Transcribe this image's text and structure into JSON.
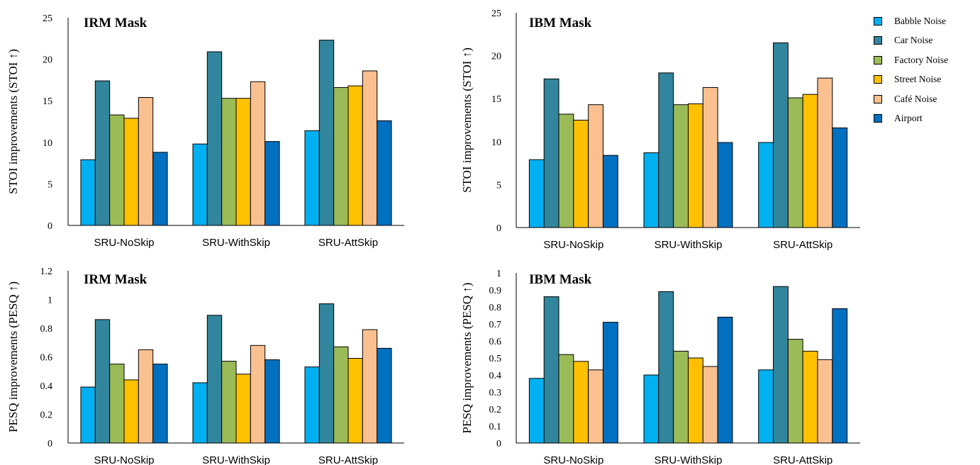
{
  "legend": {
    "items": [
      {
        "label": "Babble Noise",
        "color": "#00B0F0"
      },
      {
        "label": "Car Noise",
        "color": "#31859C"
      },
      {
        "label": "Factory Noise",
        "color": "#9BBB59"
      },
      {
        "label": "Street Noise",
        "color": "#FFC000"
      },
      {
        "label": "Café Noise",
        "color": "#FAC090"
      },
      {
        "label": "Airport",
        "color": "#0070C0"
      }
    ]
  },
  "chart_data": [
    {
      "type": "bar",
      "title": "IRM Mask",
      "ylabel": "STOI improvements (STOI ↑)",
      "categories": [
        "SRU-NoSkip",
        "SRU-WithSkip",
        "SRU-AttSkip"
      ],
      "ylim": [
        0,
        25
      ],
      "yticks": [
        0,
        5,
        10,
        15,
        20,
        25
      ],
      "series": [
        {
          "name": "Babble Noise",
          "values": [
            7.9,
            9.8,
            11.4
          ]
        },
        {
          "name": "Car Noise",
          "values": [
            17.4,
            20.9,
            22.3
          ]
        },
        {
          "name": "Factory Noise",
          "values": [
            13.3,
            15.3,
            16.6
          ]
        },
        {
          "name": "Street Noise",
          "values": [
            12.9,
            15.3,
            16.8
          ]
        },
        {
          "name": "Café Noise",
          "values": [
            15.4,
            17.3,
            18.6
          ]
        },
        {
          "name": "Airport",
          "values": [
            8.8,
            10.1,
            12.6
          ]
        }
      ]
    },
    {
      "type": "bar",
      "title": "IBM Mask",
      "ylabel": "STOI improvements (STOI ↑)",
      "categories": [
        "SRU-NoSkip",
        "SRU-WithSkip",
        "SRU-AttSkip"
      ],
      "ylim": [
        0,
        25
      ],
      "yticks": [
        0,
        5,
        10,
        15,
        20,
        25
      ],
      "series": [
        {
          "name": "Babble Noise",
          "values": [
            7.9,
            8.7,
            9.9
          ]
        },
        {
          "name": "Car Noise",
          "values": [
            17.3,
            18.0,
            21.5
          ]
        },
        {
          "name": "Factory Noise",
          "values": [
            13.2,
            14.3,
            15.1
          ]
        },
        {
          "name": "Street Noise",
          "values": [
            12.5,
            14.4,
            15.5
          ]
        },
        {
          "name": "Café Noise",
          "values": [
            14.3,
            16.3,
            17.4
          ]
        },
        {
          "name": "Airport",
          "values": [
            8.4,
            9.9,
            11.6
          ]
        }
      ]
    },
    {
      "type": "bar",
      "title": "IRM Mask",
      "ylabel": "PESQ improvements (PESQ ↑)",
      "categories": [
        "SRU-NoSkip",
        "SRU-WithSkip",
        "SRU-AttSkip"
      ],
      "ylim": [
        0,
        1.2
      ],
      "yticks": [
        "0",
        "0.2",
        "0.4",
        "0.6",
        "0.8",
        "1",
        "1.2"
      ],
      "series": [
        {
          "name": "Babble Noise",
          "values": [
            0.39,
            0.42,
            0.53
          ]
        },
        {
          "name": "Car Noise",
          "values": [
            0.86,
            0.89,
            0.97
          ]
        },
        {
          "name": "Factory Noise",
          "values": [
            0.55,
            0.57,
            0.67
          ]
        },
        {
          "name": "Street Noise",
          "values": [
            0.44,
            0.48,
            0.59
          ]
        },
        {
          "name": "Café Noise",
          "values": [
            0.65,
            0.68,
            0.79
          ]
        },
        {
          "name": "Airport",
          "values": [
            0.55,
            0.58,
            0.66
          ]
        }
      ]
    },
    {
      "type": "bar",
      "title": "IBM Mask",
      "ylabel": "PESQ improvements (PESQ ↑)",
      "categories": [
        "SRU-NoSkip",
        "SRU-WithSkip",
        "SRU-AttSkip"
      ],
      "ylim": [
        0,
        1
      ],
      "yticks": [
        "0",
        "0.1",
        "0.2",
        "0.3",
        "0.4",
        "0.5",
        "0.6",
        "0.7",
        "0.8",
        "0.9",
        "1"
      ],
      "series": [
        {
          "name": "Babble Noise",
          "values": [
            0.38,
            0.4,
            0.43
          ]
        },
        {
          "name": "Car Noise",
          "values": [
            0.86,
            0.89,
            0.92
          ]
        },
        {
          "name": "Factory Noise",
          "values": [
            0.52,
            0.54,
            0.61
          ]
        },
        {
          "name": "Street Noise",
          "values": [
            0.48,
            0.5,
            0.54
          ]
        },
        {
          "name": "Café Noise",
          "values": [
            0.43,
            0.45,
            0.49
          ]
        },
        {
          "name": "Airport",
          "values": [
            0.71,
            0.74,
            0.79
          ]
        }
      ]
    }
  ]
}
